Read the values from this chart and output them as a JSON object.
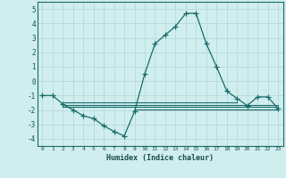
{
  "xlabel": "Humidex (Indice chaleur)",
  "x_main": [
    0,
    1,
    2,
    3,
    4,
    5,
    6,
    7,
    8,
    9,
    10,
    11,
    12,
    13,
    14,
    15,
    16,
    17,
    18,
    19,
    20,
    21,
    22,
    23
  ],
  "y_main": [
    -1,
    -1,
    -1.6,
    -2.0,
    -2.4,
    -2.6,
    -3.1,
    -3.5,
    -3.8,
    -2.1,
    0.5,
    2.6,
    3.2,
    3.8,
    4.7,
    4.7,
    2.6,
    1.0,
    -0.7,
    -1.2,
    -1.7,
    -1.1,
    -1.1,
    -1.9
  ],
  "flat_lines": [
    {
      "x_start": 2,
      "x_end": 23,
      "y": -1.65
    },
    {
      "x_start": 2,
      "x_end": 23,
      "y": -1.8
    },
    {
      "x_start": 2,
      "x_end": 19,
      "y": -1.5
    },
    {
      "x_start": 9,
      "x_end": 23,
      "y": -1.95
    }
  ],
  "ylim": [
    -4.5,
    5.5
  ],
  "xlim": [
    -0.5,
    23.5
  ],
  "yticks": [
    -4,
    -3,
    -2,
    -1,
    0,
    1,
    2,
    3,
    4,
    5
  ],
  "xticks": [
    0,
    1,
    2,
    3,
    4,
    5,
    6,
    7,
    8,
    9,
    10,
    11,
    12,
    13,
    14,
    15,
    16,
    17,
    18,
    19,
    20,
    21,
    22,
    23
  ],
  "line_color": "#1a6b6b",
  "bg_color": "#d0eeee",
  "grid_color": "#b8d8d8",
  "tick_color": "#1a4a4a",
  "xlabel_fontsize": 6.0,
  "ytick_fontsize": 5.5,
  "xtick_fontsize": 4.5
}
